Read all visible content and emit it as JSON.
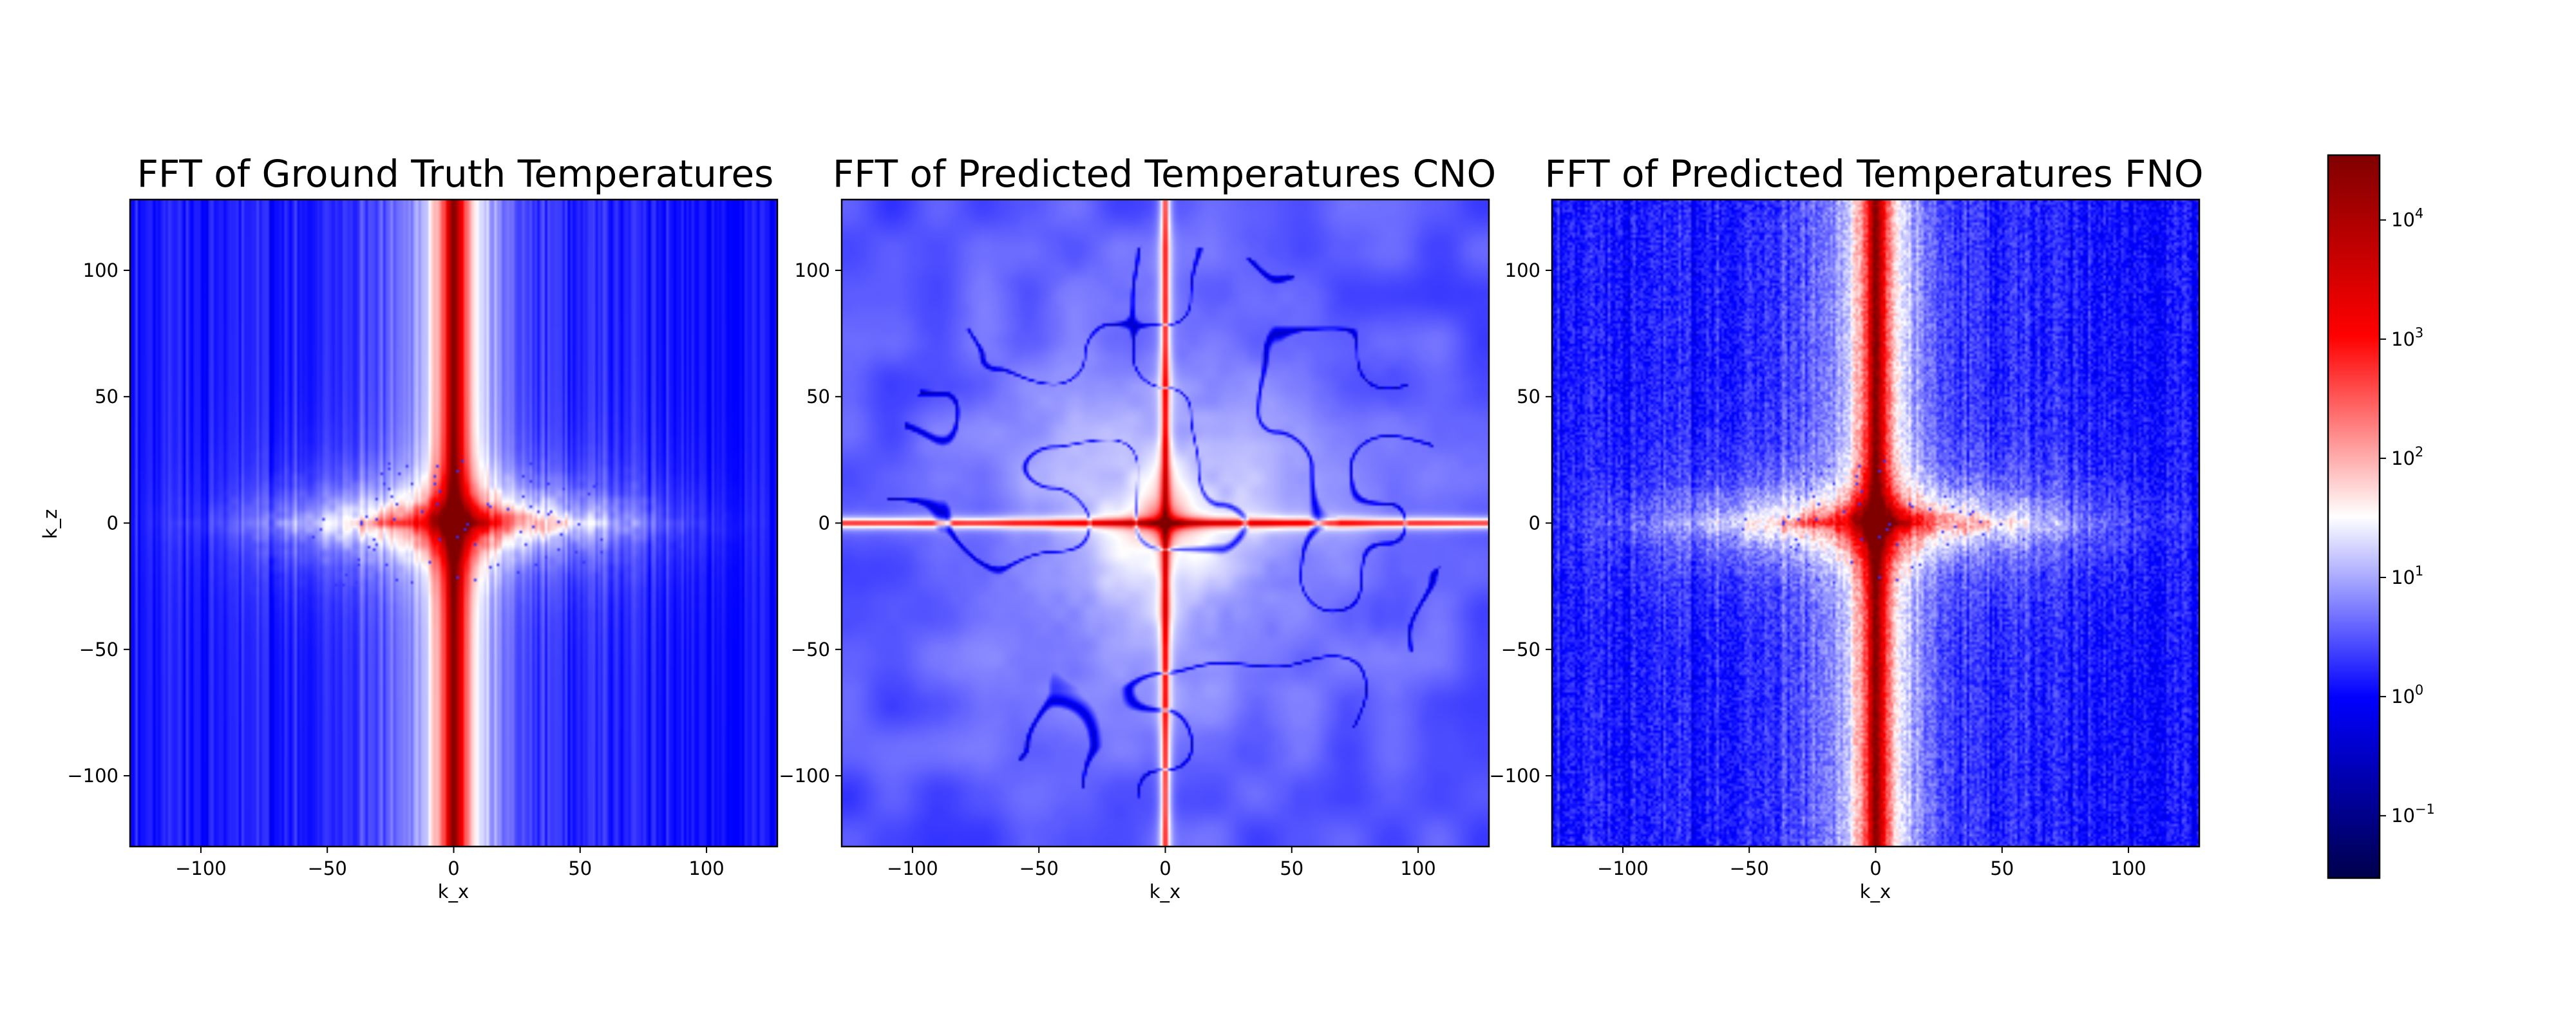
{
  "chart_data": [
    {
      "type": "heatmap",
      "title": "FFT of Ground Truth Temperatures",
      "xlabel": "k_x",
      "ylabel": "k_z",
      "xlim": [
        -128,
        128
      ],
      "ylim": [
        -128,
        128
      ],
      "xticks": [
        -100,
        -50,
        0,
        50,
        100
      ],
      "xtick_labels": [
        "−100",
        "−50",
        "0",
        "50",
        "100"
      ],
      "yticks": [
        -100,
        -50,
        0,
        50,
        100
      ],
      "ytick_labels": [
        "−100",
        "−50",
        "0",
        "50",
        "100"
      ],
      "colormap": "seismic",
      "color_scale": "log",
      "pattern": "ground_truth",
      "description_of_field": [
        {
          "region": "center (0,0)",
          "value_approx": 30000
        },
        {
          "region": "vertical band k_x≈0",
          "value_approx": 3000
        },
        {
          "region": "horizontal band k_z≈0, |k_x|<60",
          "value_approx": 300
        },
        {
          "region": "far field",
          "value_approx": 1
        }
      ]
    },
    {
      "type": "heatmap",
      "title": "FFT of Predicted Temperatures CNO",
      "xlabel": "k_x",
      "ylabel": "",
      "xlim": [
        -128,
        128
      ],
      "ylim": [
        -128,
        128
      ],
      "xticks": [
        -100,
        -50,
        0,
        50,
        100
      ],
      "xtick_labels": [
        "−100",
        "−50",
        "0",
        "50",
        "100"
      ],
      "yticks": [
        -100,
        -50,
        0,
        50,
        100
      ],
      "ytick_labels": [
        "−100",
        "−50",
        "0",
        "50",
        "100"
      ],
      "colormap": "seismic",
      "color_scale": "log",
      "pattern": "cno",
      "description_of_field": [
        {
          "region": "center (0,0)",
          "value_approx": 30000
        },
        {
          "region": "thin lines k_x=0 and k_z=0",
          "value_approx": 3000
        },
        {
          "region": "central halo |k|<40",
          "value_approx": 30
        },
        {
          "region": "far field",
          "value_approx": 3
        }
      ]
    },
    {
      "type": "heatmap",
      "title": "FFT of Predicted Temperatures FNO",
      "xlabel": "k_x",
      "ylabel": "",
      "xlim": [
        -128,
        128
      ],
      "ylim": [
        -128,
        128
      ],
      "xticks": [
        -100,
        -50,
        0,
        50,
        100
      ],
      "xtick_labels": [
        "−100",
        "−50",
        "0",
        "50",
        "100"
      ],
      "yticks": [
        -100,
        -50,
        0,
        50,
        100
      ],
      "ytick_labels": [
        "−100",
        "−50",
        "0",
        "50",
        "100"
      ],
      "colormap": "seismic",
      "color_scale": "log",
      "pattern": "fno",
      "description_of_field": [
        {
          "region": "center (0,0)",
          "value_approx": 30000
        },
        {
          "region": "vertical band k_x≈0",
          "value_approx": 3000
        },
        {
          "region": "horizontal band k_z≈0, |k_x|<70",
          "value_approx": 300
        },
        {
          "region": "far field (noisy)",
          "value_approx": 1
        }
      ]
    }
  ],
  "colorbar": {
    "scale": "log",
    "vmin": 0.03,
    "vmax": 35000,
    "colormap": "seismic",
    "ticks": [
      {
        "value": 0.1,
        "base": "10",
        "exp": "−1"
      },
      {
        "value": 1,
        "base": "10",
        "exp": "0"
      },
      {
        "value": 10,
        "base": "10",
        "exp": "1"
      },
      {
        "value": 100,
        "base": "10",
        "exp": "2"
      },
      {
        "value": 1000,
        "base": "10",
        "exp": "3"
      },
      {
        "value": 10000,
        "base": "10",
        "exp": "4"
      }
    ]
  }
}
